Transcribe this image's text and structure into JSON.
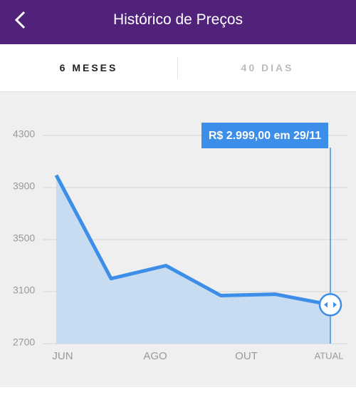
{
  "header": {
    "title": "Histórico de Preços"
  },
  "tabs": [
    "6 MESES",
    "40 DIAS"
  ],
  "chart_data": {
    "type": "area",
    "values": [
      3995,
      3200,
      3300,
      3070,
      3080,
      2999
    ],
    "x_labels": [
      "JUN",
      "AGO",
      "OUT",
      "ATUAL"
    ],
    "annotation": "R$ 2.999,00 em 29/11",
    "ylim": [
      2700,
      4300
    ],
    "yticks": [
      2700,
      3100,
      3500,
      3900,
      4300
    ],
    "color": "#3d8ee8",
    "fill": "#c8dcf1",
    "grid": true
  }
}
